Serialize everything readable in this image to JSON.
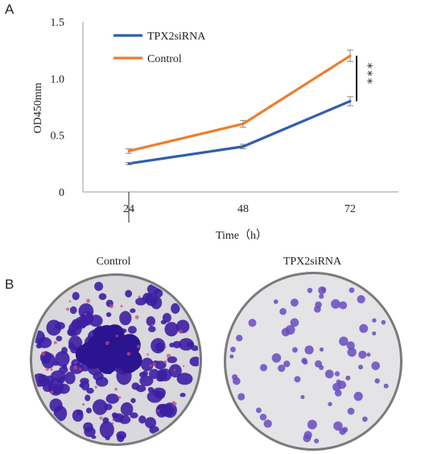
{
  "panels": {
    "a_label": "A",
    "b_label": "B"
  },
  "chart_data": {
    "type": "line",
    "categories": [
      "24",
      "48",
      "72"
    ],
    "xlabel": "Time（h）",
    "ylabel": "OD450mm",
    "ylim": [
      0,
      1.5
    ],
    "yticks": [
      "0",
      "0.5",
      "1.0",
      "1.5"
    ],
    "grid": false,
    "legend_position": "top-left",
    "series": [
      {
        "name": "TPX2siRNA",
        "color": "#2f5eab",
        "values": [
          0.25,
          0.4,
          0.8
        ],
        "errors": [
          0.01,
          0.02,
          0.04
        ]
      },
      {
        "name": "Control",
        "color": "#ef7d2b",
        "values": [
          0.36,
          0.6,
          1.2
        ],
        "errors": [
          0.02,
          0.03,
          0.05
        ]
      }
    ],
    "annotation": "***"
  },
  "colonies": {
    "left_title": "Control",
    "right_title": "TPX2siRNA",
    "stain_color": "#3d1fa3"
  }
}
